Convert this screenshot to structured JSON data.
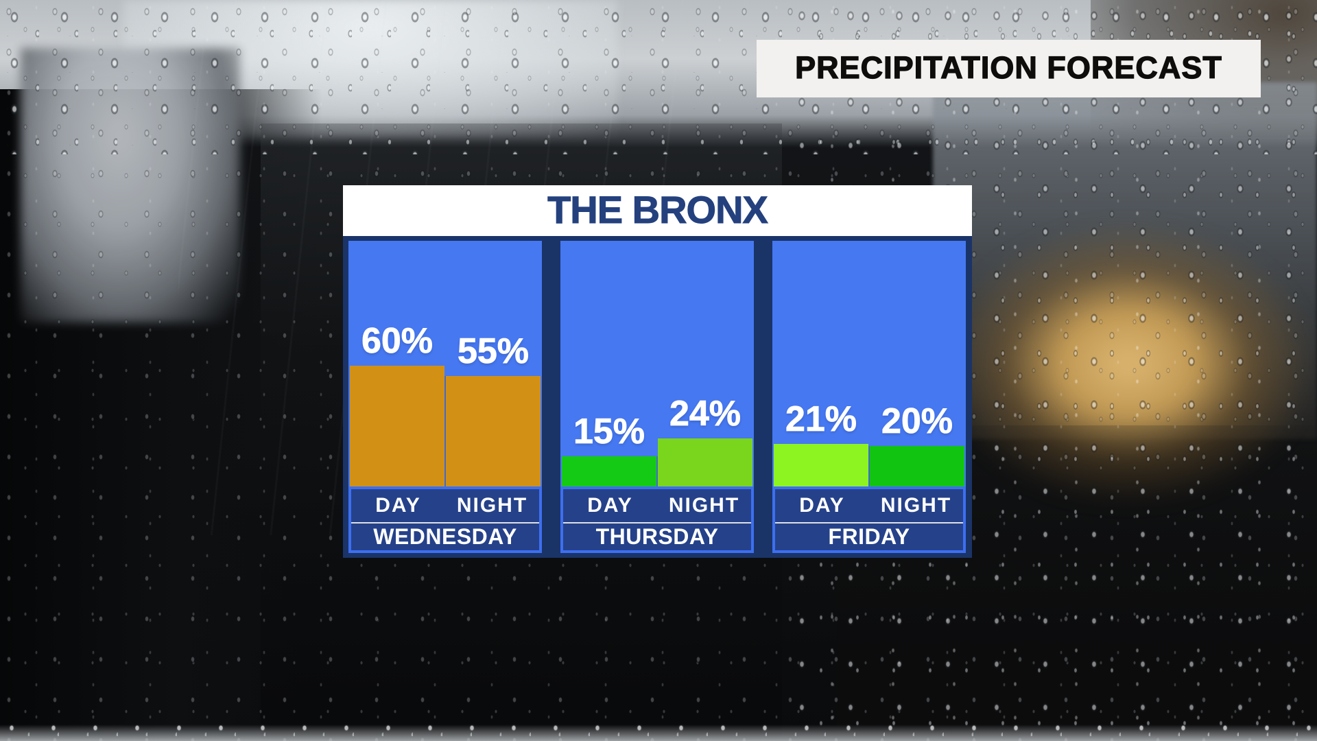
{
  "banner": {
    "title": "PRECIPITATION FORECAST"
  },
  "widget": {
    "location": "THE BRONX"
  },
  "chart_data": {
    "type": "bar",
    "title": "THE BRONX",
    "unit": "%",
    "ylim": [
      0,
      122
    ],
    "categories": [
      "WEDNESDAY",
      "THURSDAY",
      "FRIDAY"
    ],
    "series": [
      {
        "name": "DAY",
        "values": [
          60,
          15,
          21
        ]
      },
      {
        "name": "NIGHT",
        "values": [
          55,
          24,
          20
        ]
      }
    ],
    "panels": [
      {
        "day_name": "WEDNESDAY",
        "bars": [
          {
            "label": "DAY",
            "value": 60,
            "display": "60%",
            "color": "#d29114"
          },
          {
            "label": "NIGHT",
            "value": 55,
            "display": "55%",
            "color": "#d29114"
          }
        ]
      },
      {
        "day_name": "THURSDAY",
        "bars": [
          {
            "label": "DAY",
            "value": 15,
            "display": "15%",
            "color": "#14ca14"
          },
          {
            "label": "NIGHT",
            "value": 24,
            "display": "24%",
            "color": "#7ad51d"
          }
        ]
      },
      {
        "day_name": "FRIDAY",
        "bars": [
          {
            "label": "DAY",
            "value": 21,
            "display": "21%",
            "color": "#8df321"
          },
          {
            "label": "NIGHT",
            "value": 20,
            "display": "20%",
            "color": "#12c412"
          }
        ]
      }
    ],
    "pixels_per_percent": 2.933,
    "colors": {
      "panel_blue": "#4678f2",
      "frame_navy": "#1a3468",
      "label_bg": "#254189",
      "label_outline": "#3d6ff0",
      "header_bg": "#ffffff",
      "header_text": "#24417e",
      "banner_bg": "#f2f1ef",
      "banner_text": "#0e0d0b",
      "value_text": "#ffffff"
    },
    "legend_position": "none",
    "grid": false
  }
}
